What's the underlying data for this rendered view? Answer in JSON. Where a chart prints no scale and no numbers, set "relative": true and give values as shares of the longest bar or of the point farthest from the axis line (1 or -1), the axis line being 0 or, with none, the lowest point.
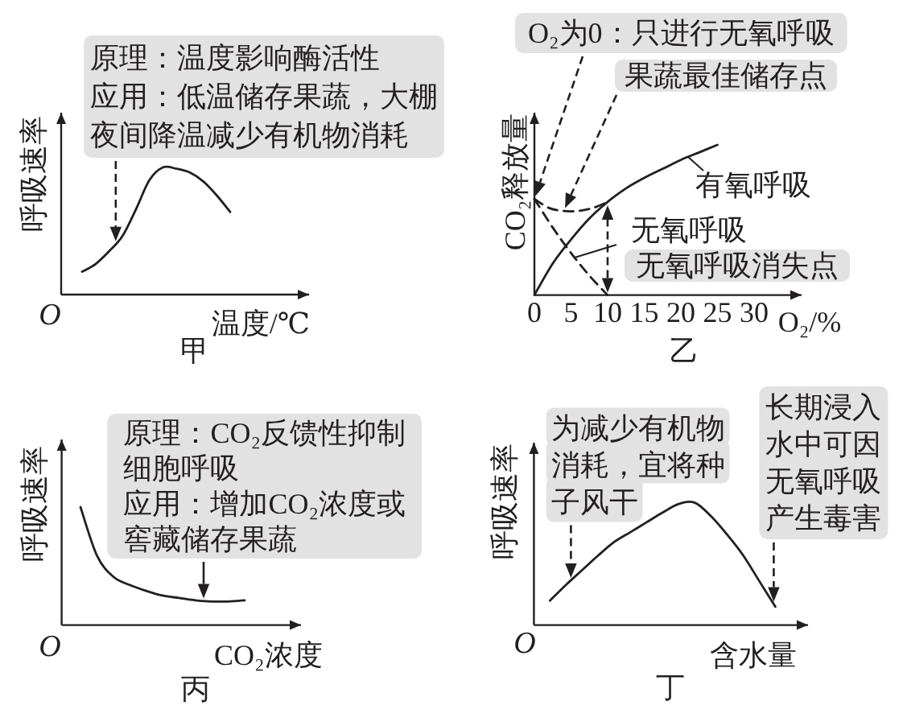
{
  "chart_data": [
    {
      "type": "line",
      "title": "甲",
      "xlabel": "温度/℃",
      "ylabel": "呼吸速率",
      "relative": true,
      "color": "#231f20",
      "categories": [
        null,
        null,
        null,
        null,
        null,
        null,
        null,
        null,
        null,
        null,
        null,
        null
      ],
      "values": [
        0.18,
        0.24,
        0.34,
        0.46,
        0.67,
        0.9,
        1,
        0.99,
        0.96,
        0.89,
        0.78,
        0.65
      ],
      "annotations": [
        "O",
        "原理：温度影响酶活性",
        "应用：低温储存果蔬，大棚夜间降温减少有机物消耗"
      ]
    },
    {
      "type": "line",
      "title": "乙",
      "xlabel": "O₂/%",
      "ylabel": "CO₂释放量",
      "relative": true,
      "legend": "right",
      "xlim": [
        0,
        36.5
      ],
      "xticks": [
        0,
        5,
        10,
        15,
        20,
        25,
        30
      ],
      "series": [
        {
          "name": "有氧呼吸",
          "color": "#231f20",
          "line_style": "solid",
          "x": [
            0,
            2.5,
            5,
            7.5,
            10,
            12.5,
            15,
            17.5,
            20,
            22.5,
            25
          ],
          "values": [
            0,
            0.21,
            0.37,
            0.51,
            0.62,
            0.71,
            0.78,
            0.84,
            0.9,
            0.95,
            1
          ]
        },
        {
          "name": "无氧呼吸",
          "color": "#231f20",
          "line_style": "dashed",
          "x": [
            0,
            2.5,
            5,
            7.5,
            10
          ],
          "values": [
            0.64,
            0.45,
            0.28,
            0.13,
            0
          ]
        },
        {
          "color": "#231f20",
          "line_style": "dashed",
          "x": [
            0,
            2,
            4,
            6,
            8,
            10
          ],
          "values": [
            0.64,
            0.58,
            0.56,
            0.56,
            0.58,
            0.62
          ]
        }
      ],
      "annotations": [
        "O₂为0：只进行无氧呼吸",
        "果蔬最佳储存点",
        "无氧呼吸消失点"
      ]
    },
    {
      "type": "line",
      "title": "丙",
      "xlabel": "CO₂浓度",
      "ylabel": "呼吸速率",
      "relative": true,
      "color": "#231f20",
      "categories": [
        null,
        null,
        null,
        null,
        null,
        null,
        null,
        null,
        null,
        null,
        null
      ],
      "values": [
        1,
        0.59,
        0.41,
        0.34,
        0.29,
        0.25,
        0.23,
        0.21,
        0.2,
        0.2,
        0.21
      ],
      "annotations": [
        "O",
        "原理：CO₂反馈性抑制细胞呼吸",
        "应用：增加CO₂浓度或窖藏储存果蔬"
      ]
    },
    {
      "type": "line",
      "title": "丁",
      "xlabel": "含水量",
      "ylabel": "呼吸速率",
      "relative": true,
      "color": "#231f20",
      "categories": [
        null,
        null,
        null,
        null,
        null,
        null,
        null,
        null,
        null,
        null,
        null,
        null,
        null,
        null,
        null
      ],
      "values": [
        0.2,
        0.33,
        0.45,
        0.57,
        0.68,
        0.76,
        0.84,
        0.92,
        0.99,
        1,
        0.89,
        0.74,
        0.57,
        0.36,
        0.15
      ],
      "annotations": [
        "O",
        "为减少有机物消耗，宜将种子风干",
        "长期浸入水中可因无氧呼吸产生毒害"
      ]
    }
  ]
}
